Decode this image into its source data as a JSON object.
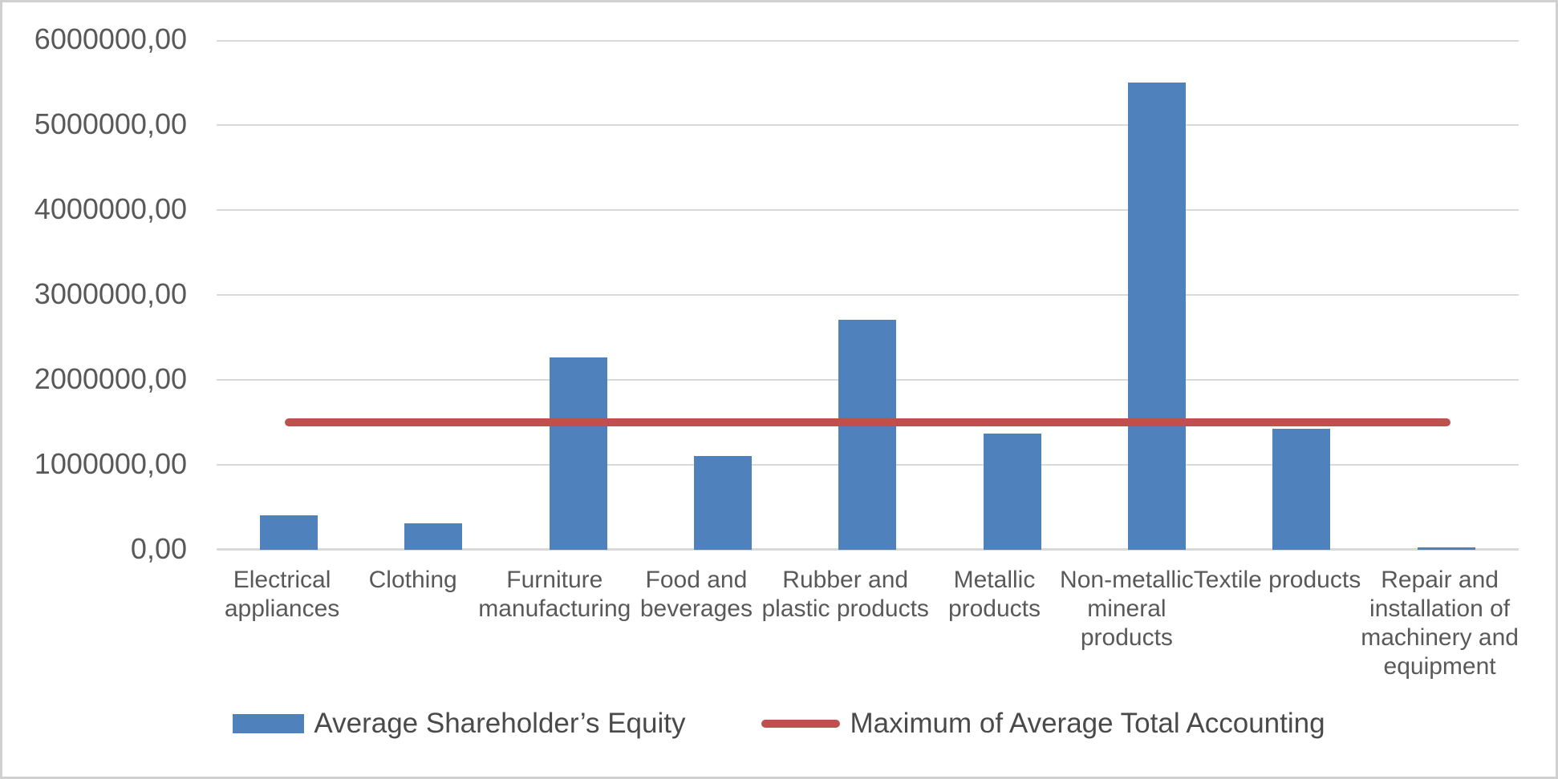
{
  "window": {
    "background_color": "#FFFFFF",
    "border_color": "#D0D0D0"
  },
  "chart_data": {
    "type": "bar",
    "title": "",
    "xlabel": "",
    "ylabel": "",
    "categories": [
      "Electrical appliances",
      "Clothing",
      "Furniture manufacturing",
      "Food and beverages",
      "Rubber and plastic products",
      "Metallic products",
      "Non-metallic mineral products",
      "Textile products",
      "Repair and installation of machinery and equipment"
    ],
    "category_label_lines": [
      [
        "Electrical",
        "appliances"
      ],
      [
        "Clothing"
      ],
      [
        "Furniture",
        "manufacturing"
      ],
      [
        "Food and",
        "beverages"
      ],
      [
        "Rubber and",
        "plastic products"
      ],
      [
        "Metallic",
        "products"
      ],
      [
        "Non-metallic",
        "mineral",
        "products"
      ],
      [
        "Textile products"
      ],
      [
        "Repair and",
        "installation of",
        "machinery and",
        "equipment"
      ]
    ],
    "series": [
      {
        "name": "Average Shareholder’s Equity",
        "type": "bar",
        "color": "#4F81BD",
        "values": [
          410000,
          310000,
          2260000,
          1100000,
          2710000,
          1370000,
          5500000,
          1420000,
          25000
        ]
      },
      {
        "name": "Maximum of Average Total Accounting",
        "type": "line",
        "color": "#C0504D",
        "values": [
          1500000,
          1500000,
          1500000,
          1500000,
          1500000,
          1500000,
          1500000,
          1500000,
          1500000
        ]
      }
    ],
    "ylim": [
      0,
      6000000
    ],
    "y_tick_interval": 1000000,
    "y_tick_labels": [
      "6000000,00",
      "5000000,00",
      "4000000,00",
      "3000000,00",
      "2000000,00",
      "1000000,00",
      "0,00"
    ],
    "decimal_separator": ",",
    "grid": "horizontal",
    "gridline_color": "#D9D9D9",
    "axis_text_color": "#595959",
    "legend_position": "bottom",
    "legend": [
      {
        "label": "Average Shareholder’s Equity",
        "marker": "rect",
        "color": "#4F81BD"
      },
      {
        "label": "Maximum of Average Total Accounting",
        "marker": "line",
        "color": "#C0504D"
      }
    ]
  }
}
